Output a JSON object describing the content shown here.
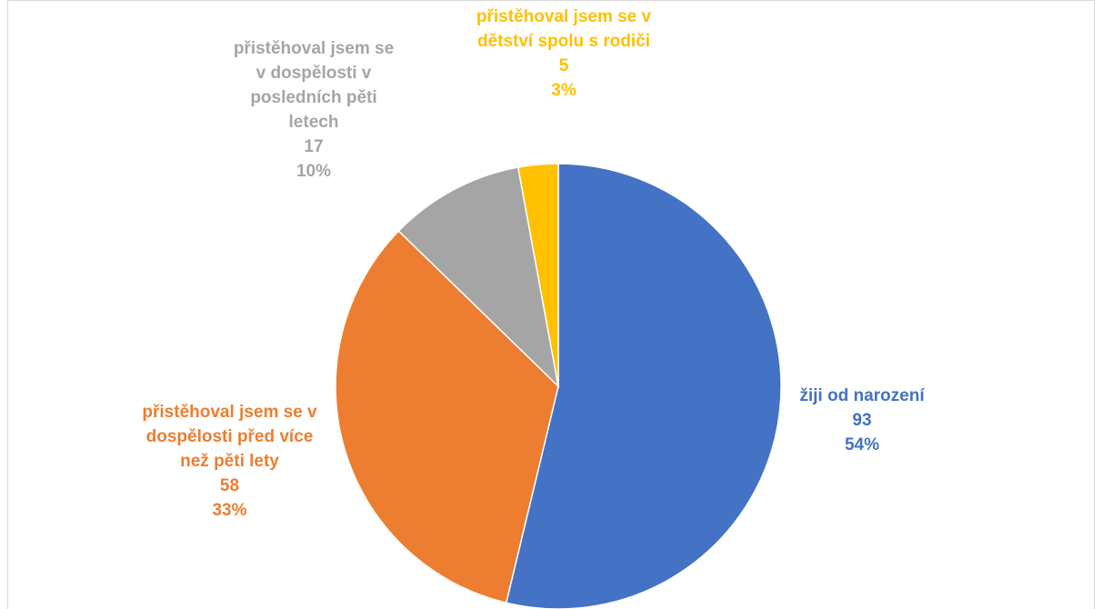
{
  "chart_data": {
    "type": "pie",
    "categories": [
      "žiji od narození",
      "přistěhoval jsem se v dospělosti před více než pěti lety",
      "přistěhoval jsem se v dospělosti v posledních pěti letech",
      "přistěhoval jsem se v dětství spolu s rodiči"
    ],
    "values": [
      93,
      58,
      17,
      5
    ],
    "percent_labels": [
      "54%",
      "33%",
      "10%",
      "3%"
    ],
    "colors": [
      "#4472c4",
      "#ed7d31",
      "#a5a5a5",
      "#ffc000"
    ]
  }
}
